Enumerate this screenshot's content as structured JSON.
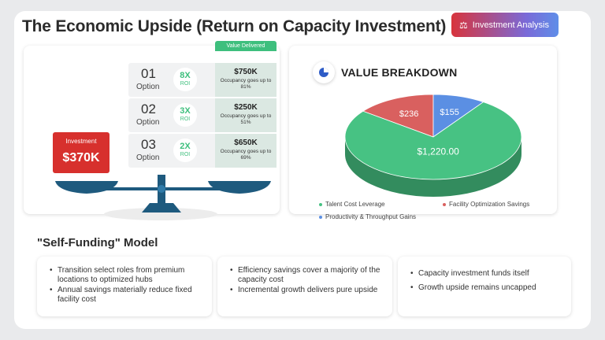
{
  "title": "The Economic Upside (Return on Capacity Investment)",
  "badge": {
    "label": "Investment Analysis",
    "icon": "scale-icon"
  },
  "value_delivered_label": "Value Delivered",
  "options": [
    {
      "num": "01",
      "label": "Option",
      "roi": "8X",
      "roi_label": "ROI",
      "amount": "$750K",
      "desc": "Occupancy goes up to 81%"
    },
    {
      "num": "02",
      "label": "Option",
      "roi": "3X",
      "roi_label": "ROI",
      "amount": "$250K",
      "desc": "Occupancy goes up to 51%"
    },
    {
      "num": "03",
      "label": "Option",
      "roi": "2X",
      "roi_label": "ROI",
      "amount": "$650K",
      "desc": "Occupancy goes up to 69%"
    }
  ],
  "investment": {
    "label": "Investment",
    "amount": "$370K"
  },
  "value_breakdown": {
    "title": "VALUE BREAKDOWN",
    "icon": "pie-chart-icon"
  },
  "chart_data": {
    "type": "pie",
    "categories": [
      "Talent Cost Leverage",
      "Facility Optimization Savings",
      "Productivity & Throughput Gains"
    ],
    "values": [
      1220,
      236,
      155
    ],
    "data_labels": [
      "$1,220.00",
      "$236",
      "$155"
    ],
    "colors": [
      "#47c283",
      "#d9605f",
      "#5b8fe3"
    ],
    "legend_position": "bottom"
  },
  "self_funding": {
    "title": "\"Self-Funding\" Model",
    "cards": [
      [
        "Transition select roles from premium locations to optimized hubs",
        "Annual savings materially reduce fixed facility cost"
      ],
      [
        "Efficiency savings cover a majority of the capacity cost",
        "Incremental growth delivers pure upside"
      ],
      [
        "Capacity investment funds itself",
        "Growth upside remains uncapped"
      ]
    ]
  }
}
